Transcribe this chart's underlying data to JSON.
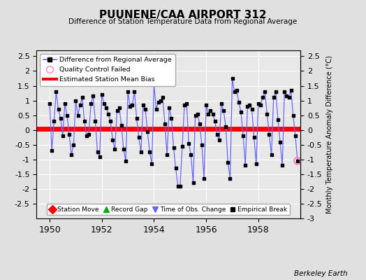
{
  "title": "PUUNENE/CAA AIRPORT 312",
  "subtitle": "Difference of Station Temperature Data from Regional Average",
  "ylabel_right": "Monthly Temperature Anomaly Difference (°C)",
  "bias_value": 0.05,
  "ylim": [
    -3,
    2.7
  ],
  "xlim": [
    1949.5,
    1959.6
  ],
  "xticks": [
    1950,
    1952,
    1954,
    1956,
    1958
  ],
  "yticks_left": [
    -2.5,
    -2,
    -1.5,
    -1,
    -0.5,
    0,
    0.5,
    1,
    1.5,
    2,
    2.5
  ],
  "yticks_right": [
    -3,
    -2.5,
    -2,
    -1.5,
    -1,
    -0.5,
    0,
    0.5,
    1,
    1.5,
    2,
    2.5
  ],
  "line_color": "#6666ff",
  "marker_color": "#000000",
  "bias_color": "#ff0000",
  "background_color": "#e0e0e0",
  "plot_bg_color": "#e8e8e8",
  "qc_fail_color": "#ff88bb",
  "watermark": "Berkeley Earth",
  "data_x": [
    1950.0,
    1950.083,
    1950.167,
    1950.25,
    1950.333,
    1950.417,
    1950.5,
    1950.583,
    1950.667,
    1950.75,
    1950.833,
    1950.917,
    1951.0,
    1951.083,
    1951.167,
    1951.25,
    1951.333,
    1951.417,
    1951.5,
    1951.583,
    1951.667,
    1951.75,
    1951.833,
    1951.917,
    1952.0,
    1952.083,
    1952.167,
    1952.25,
    1952.333,
    1952.417,
    1952.5,
    1952.583,
    1952.667,
    1952.75,
    1952.833,
    1952.917,
    1953.0,
    1953.083,
    1953.167,
    1953.25,
    1953.333,
    1953.417,
    1953.5,
    1953.583,
    1953.667,
    1953.75,
    1953.833,
    1953.917,
    1954.0,
    1954.083,
    1954.167,
    1954.25,
    1954.333,
    1954.417,
    1954.5,
    1954.583,
    1954.667,
    1954.75,
    1954.833,
    1954.917,
    1955.0,
    1955.083,
    1955.167,
    1955.25,
    1955.333,
    1955.417,
    1955.5,
    1955.583,
    1955.667,
    1955.75,
    1955.833,
    1955.917,
    1956.0,
    1956.083,
    1956.167,
    1956.25,
    1956.333,
    1956.417,
    1956.5,
    1956.583,
    1956.667,
    1956.75,
    1956.833,
    1956.917,
    1957.0,
    1957.083,
    1957.167,
    1957.25,
    1957.333,
    1957.417,
    1957.5,
    1957.583,
    1957.667,
    1957.75,
    1957.833,
    1957.917,
    1958.0,
    1958.083,
    1958.167,
    1958.25,
    1958.333,
    1958.417,
    1958.5,
    1958.583,
    1958.667,
    1958.75,
    1958.833,
    1958.917,
    1959.0,
    1959.083,
    1959.167,
    1959.25,
    1959.333,
    1959.417,
    1959.5
  ],
  "data_y": [
    0.9,
    -0.7,
    0.3,
    1.3,
    0.7,
    0.4,
    -0.2,
    0.9,
    0.5,
    -0.15,
    -0.85,
    -0.5,
    1.0,
    0.5,
    0.85,
    1.1,
    0.3,
    -0.2,
    -0.15,
    0.9,
    1.15,
    0.3,
    -0.75,
    -0.9,
    1.2,
    0.9,
    0.75,
    0.55,
    0.3,
    -0.35,
    -0.65,
    0.65,
    0.75,
    0.15,
    -0.65,
    -1.05,
    1.3,
    0.8,
    0.85,
    1.3,
    0.4,
    -0.25,
    -0.75,
    0.85,
    0.7,
    -0.05,
    -0.75,
    -1.15,
    1.55,
    0.7,
    0.95,
    1.0,
    1.1,
    0.2,
    -0.85,
    0.75,
    0.4,
    -0.6,
    -1.3,
    -1.9,
    -1.9,
    -0.55,
    0.85,
    0.9,
    -0.45,
    -0.85,
    -1.8,
    0.5,
    0.55,
    0.2,
    -0.5,
    -1.65,
    0.85,
    0.55,
    0.65,
    0.55,
    0.3,
    -0.15,
    -0.35,
    0.9,
    0.65,
    0.1,
    -1.1,
    -1.65,
    1.75,
    1.3,
    1.35,
    0.95,
    0.6,
    -0.2,
    -1.2,
    0.8,
    0.85,
    0.7,
    -0.25,
    -1.15,
    0.9,
    0.85,
    1.1,
    1.3,
    0.55,
    -0.15,
    -0.85,
    1.1,
    1.3,
    0.35,
    -0.4,
    -1.2,
    1.3,
    1.15,
    1.1,
    1.35,
    0.5,
    -0.2,
    -1.05
  ],
  "qc_fail_x": [
    1959.5
  ],
  "qc_fail_y": [
    -1.05
  ]
}
